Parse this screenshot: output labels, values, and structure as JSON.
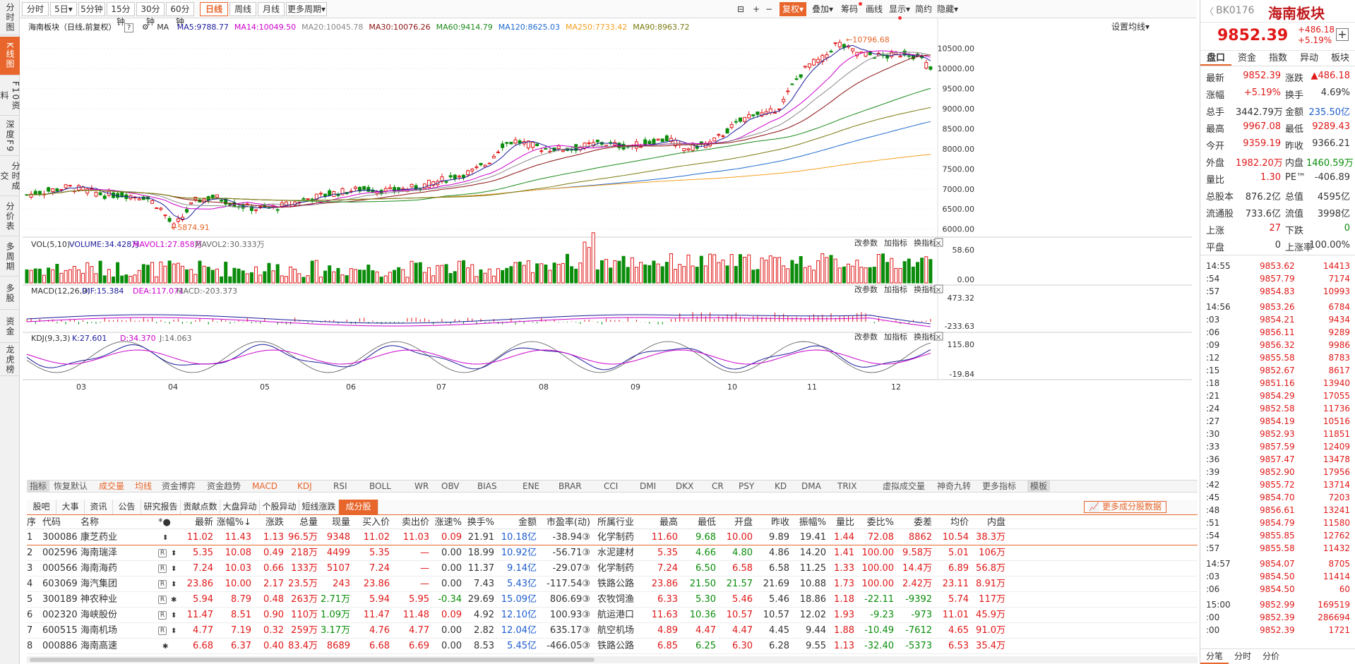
{
  "left_tabs": [
    "分时图",
    "K线图",
    "F10资料",
    "深度F9",
    "分时成交",
    "分价表",
    "多周期",
    "多股",
    "资金",
    "龙虎榜"
  ],
  "toolbar": {
    "periods": [
      "分时",
      "5日▾",
      "5分钟",
      "15分钟",
      "30分钟",
      "60分钟",
      "日线",
      "周线",
      "月线",
      "更多周期▾"
    ],
    "active_period": "日线",
    "right_buttons": [
      "⊟",
      "+",
      "−",
      "复权▾",
      "叠加▾",
      "筹码",
      "画线",
      "显示▾",
      "简约",
      "隐藏▾"
    ]
  },
  "chart": {
    "title": "海南板块（日线,前复权）",
    "ma_label": "MA",
    "ma": [
      {
        "name": "MA5:9788.77",
        "color": "#1a1a9a"
      },
      {
        "name": "MA14:10049.50",
        "color": "#cc00cc"
      },
      {
        "name": "MA20:10045.78",
        "color": "#888888"
      },
      {
        "name": "MA30:10076.26",
        "color": "#8b1010"
      },
      {
        "name": "MA60:9414.79",
        "color": "#1a8a1a"
      },
      {
        "name": "MA120:8625.03",
        "color": "#1e6ad0"
      },
      {
        "name": "MA250:7733.42",
        "color": "#f5a020"
      },
      {
        "name": "MA90:8963.72",
        "color": "#7a7a10"
      }
    ],
    "set_ma": "设置均线▾",
    "high_label": "10796.68",
    "low_label": "5874.91",
    "price_axis": [
      "10500.00",
      "10000.00",
      "9500.00",
      "9000.00",
      "8500.00",
      "8000.00",
      "7500.00",
      "7000.00",
      "6500.00",
      "6000.00"
    ],
    "vol": {
      "title": "VOL(5,10)",
      "volume": "VOLUME:34.428万",
      "mavol1": "MAVOL1:27.858万",
      "mavol2": "MAVOL2:30.333万",
      "axis": [
        "58.60",
        "0.00"
      ]
    },
    "macd": {
      "title": "MACD(12,26,9)",
      "dif": "DIF:15.384",
      "dea": "DEA:117.071",
      "macd": "MACD:-203.373",
      "axis": [
        "473.32",
        "-233.63"
      ]
    },
    "kdj": {
      "title": "KDJ(9,3,3)",
      "k": "K:27.601",
      "d": "D:34.370",
      "j": "J:14.063",
      "axis": [
        "115.80",
        "-19.84"
      ]
    },
    "panel_tools": [
      "改参数",
      "加指标",
      "换指标"
    ],
    "x_axis": [
      "03",
      "04",
      "05",
      "06",
      "07",
      "08",
      "09",
      "10",
      "11",
      "12"
    ]
  },
  "chart_data": {
    "type": "candlestick",
    "title": "海南板块（日线,前复权）",
    "ylim": [
      5800,
      10900
    ],
    "x_months": [
      "03",
      "04",
      "05",
      "06",
      "07",
      "08",
      "09",
      "10",
      "11",
      "12"
    ],
    "last_close": 9852.39,
    "high": 10796.68,
    "low": 5874.91,
    "ma": {
      "MA5": 9788.77,
      "MA14": 10049.5,
      "MA20": 10045.78,
      "MA30": 10076.26,
      "MA60": 9414.79,
      "MA120": 8625.03,
      "MA250": 7733.42,
      "MA90": 8963.72
    },
    "volume": 34.428,
    "volume_axis": [
      0,
      58.6
    ],
    "macd": {
      "dif": 15.384,
      "dea": 117.071,
      "macd": -203.373,
      "axis": [
        -233.63,
        473.32
      ]
    },
    "kdj": {
      "k": 27.601,
      "d": 34.37,
      "j": 14.063,
      "axis": [
        -19.84,
        115.8
      ]
    }
  },
  "indicator_tabs": [
    "指标",
    "恢复默认",
    "成交量",
    "均线",
    "资金博弈",
    "资金趋势",
    "MACD",
    "KDJ",
    "RSI",
    "BOLL",
    "WR",
    "OBV",
    "BIAS",
    "ENE",
    "BRAR",
    "CCI",
    "DMI",
    "DKX",
    "CR",
    "PSY",
    "KD",
    "DMA",
    "TRIX",
    "虚拟成交量",
    "神奇九转",
    "更多指标",
    "模板"
  ],
  "lower_tabs": [
    "股吧",
    "大事",
    "资讯",
    "公告",
    "研究报告",
    "贡献点数",
    "大盘异动",
    "个股异动",
    "短线涨跌",
    "成分股"
  ],
  "active_lower_tab": "成分股",
  "more_data": "更多成分股数据",
  "table": {
    "headers": [
      "序",
      "代码",
      "名称",
      "*●",
      "最新",
      "涨幅%↓",
      "涨跌",
      "总量",
      "现量",
      "买入价",
      "卖出价",
      "涨速%",
      "换手%",
      "金额",
      "市盈率(动)",
      "所属行业",
      "最高",
      "最低",
      "开盘",
      "昨收",
      "振幅%",
      "量比",
      "委比%",
      "委差",
      "均价",
      "内盘"
    ],
    "rows": [
      [
        "1",
        "300086",
        "康芝药业",
        "",
        "11.02",
        "11.43",
        "1.13",
        "96.5万",
        "9348",
        "11.02",
        "11.03",
        "0.09",
        "21.91",
        "10.18亿",
        "-38.94③",
        "化学制药",
        "11.60",
        "9.68",
        "10.00",
        "9.89",
        "19.41",
        "1.44",
        "72.08",
        "8862",
        "10.54",
        "38.3万"
      ],
      [
        "2",
        "002596",
        "海南瑞泽",
        "R",
        "5.35",
        "10.08",
        "0.49",
        "218万",
        "4499",
        "5.35",
        "—",
        "0.00",
        "18.99",
        "10.92亿",
        "-56.71③",
        "水泥建材",
        "5.35",
        "4.66",
        "4.80",
        "4.86",
        "14.20",
        "1.41",
        "100.00",
        "9.58万",
        "5.01",
        "106万"
      ],
      [
        "3",
        "000566",
        "海南海药",
        "R",
        "7.24",
        "10.03",
        "0.66",
        "133万",
        "5107",
        "7.24",
        "—",
        "0.00",
        "11.37",
        "9.14亿",
        "-29.07③",
        "化学制药",
        "7.24",
        "6.50",
        "6.58",
        "6.58",
        "11.25",
        "1.33",
        "100.00",
        "14.4万",
        "6.89",
        "56.8万"
      ],
      [
        "4",
        "603069",
        "海汽集团",
        "R",
        "23.86",
        "10.00",
        "2.17",
        "23.5万",
        "243",
        "23.86",
        "—",
        "0.00",
        "7.43",
        "5.43亿",
        "-117.54③",
        "铁路公路",
        "23.86",
        "21.50",
        "21.57",
        "21.69",
        "10.88",
        "1.73",
        "100.00",
        "2.42万",
        "23.11",
        "8.91万"
      ],
      [
        "5",
        "300189",
        "神农种业",
        "R",
        "5.94",
        "8.79",
        "0.48",
        "263万",
        "2.71万",
        "5.94",
        "5.95",
        "-0.34",
        "29.69",
        "15.09亿",
        "806.69③",
        "农牧饲渔",
        "6.33",
        "5.30",
        "5.46",
        "5.46",
        "18.86",
        "1.18",
        "-22.11",
        "-9392",
        "5.74",
        "117万"
      ],
      [
        "6",
        "002320",
        "海峡股份",
        "R",
        "11.47",
        "8.51",
        "0.90",
        "110万",
        "1.09万",
        "11.47",
        "11.48",
        "0.09",
        "4.92",
        "12.10亿",
        "100.93③",
        "航运港口",
        "11.63",
        "10.36",
        "10.57",
        "10.57",
        "12.02",
        "1.93",
        "-9.23",
        "-973",
        "11.01",
        "45.9万"
      ],
      [
        "7",
        "600515",
        "海南机场",
        "R",
        "4.77",
        "7.19",
        "0.32",
        "259万",
        "3.17万",
        "4.76",
        "4.77",
        "0.00",
        "2.82",
        "12.04亿",
        "635.17③",
        "航空机场",
        "4.89",
        "4.47",
        "4.47",
        "4.45",
        "9.44",
        "1.88",
        "-10.49",
        "-7612",
        "4.65",
        "91.0万"
      ],
      [
        "8",
        "000886",
        "海南高速",
        "",
        "6.68",
        "6.37",
        "0.40",
        "83.4万",
        "8689",
        "6.68",
        "6.69",
        "0.00",
        "8.53",
        "5.45亿",
        "-466.05③",
        "铁路公路",
        "6.85",
        "6.25",
        "6.30",
        "6.28",
        "9.55",
        "1.13",
        "-32.40",
        "-5373",
        "6.53",
        "35.4万"
      ]
    ]
  },
  "right": {
    "code": "BK0176",
    "name": "海南板块",
    "price": "9852.39",
    "change": "+486.18",
    "pct": "+5.19%",
    "tabs": [
      "盘口",
      "资金",
      "指数",
      "异动",
      "板块"
    ],
    "stats": [
      [
        "最新",
        "9852.39",
        "涨跌",
        "▲486.18"
      ],
      [
        "涨幅",
        "+5.19%",
        "换手",
        "4.69%"
      ],
      [
        "总手",
        "3442.79万",
        "金额",
        "235.50亿"
      ],
      [
        "最高",
        "9967.08",
        "最低",
        "9289.43"
      ],
      [
        "今开",
        "9359.19",
        "昨收",
        "9366.21"
      ],
      [
        "外盘",
        "1982.20万",
        "内盘",
        "1460.59万"
      ],
      [
        "量比",
        "1.30",
        "PE™",
        "-406.89"
      ],
      [
        "总股本",
        "876.2亿",
        "总值",
        "4595亿"
      ],
      [
        "流通股",
        "733.6亿",
        "流值",
        "3998亿"
      ],
      [
        "上涨",
        "27",
        "下跌",
        "0"
      ],
      [
        "平盘",
        "0",
        "上涨率",
        "100.00%"
      ]
    ],
    "ticks": [
      [
        "14:55",
        "9853.62",
        "14413"
      ],
      [
        ":54",
        "9857.79",
        "7174"
      ],
      [
        ":57",
        "9854.83",
        "10993"
      ],
      [
        "14:56",
        "9853.26",
        "6784"
      ],
      [
        ":03",
        "9854.21",
        "9434"
      ],
      [
        ":06",
        "9856.11",
        "9289"
      ],
      [
        ":09",
        "9856.32",
        "9986"
      ],
      [
        ":12",
        "9855.58",
        "8783"
      ],
      [
        ":15",
        "9852.67",
        "8617"
      ],
      [
        ":18",
        "9851.16",
        "13940"
      ],
      [
        ":21",
        "9854.29",
        "17055"
      ],
      [
        ":24",
        "9852.58",
        "11736"
      ],
      [
        ":27",
        "9854.19",
        "10516"
      ],
      [
        ":30",
        "9852.93",
        "11851"
      ],
      [
        ":33",
        "9857.59",
        "12409"
      ],
      [
        ":36",
        "9857.47",
        "13478"
      ],
      [
        ":39",
        "9852.90",
        "17956"
      ],
      [
        ":42",
        "9855.72",
        "13714"
      ],
      [
        ":45",
        "9854.70",
        "7203"
      ],
      [
        ":48",
        "9856.61",
        "13241"
      ],
      [
        ":51",
        "9854.79",
        "11580"
      ],
      [
        ":54",
        "9855.85",
        "12762"
      ],
      [
        ":57",
        "9855.58",
        "11432"
      ],
      [
        "14:57",
        "9854.07",
        "8705"
      ],
      [
        ":03",
        "9854.50",
        "11414"
      ],
      [
        ":06",
        "9854.50",
        "60"
      ],
      [
        "15:00",
        "9852.99",
        "169519"
      ],
      [
        ":00",
        "9852.39",
        "286694"
      ],
      [
        ":00",
        "9852.39",
        "1721"
      ]
    ],
    "bottom_tabs": [
      "分笔",
      "分时",
      "分价"
    ]
  }
}
